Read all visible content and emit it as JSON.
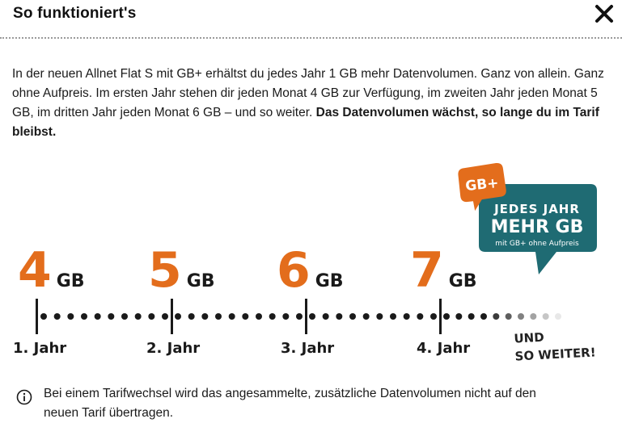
{
  "dialog": {
    "title": "So funktioniert's",
    "close_label": "close"
  },
  "intro": {
    "text": "In der neuen Allnet Flat S mit GB+ erhältst du jedes Jahr 1 GB mehr Datenvolumen. Ganz von allein. Ganz ohne Aufpreis. Im ersten Jahr stehen dir jeden Monat 4 GB zur Verfügung, im zweiten Jahr jeden Monat 5 GB, im dritten Jahr jeden Monat 6 GB – und so weiter. ",
    "bold_text": "Das Datenvolumen wächst, so lange du im Tarif bleibst."
  },
  "badge": {
    "logo": "GB+",
    "line1": "JEDES JAHR",
    "line2": "MEHR GB",
    "line3": "mit GB+ ohne Aufpreis",
    "bubble_color": "#1f6b73",
    "logo_color": "#e36d1c"
  },
  "timeline": {
    "steps": [
      {
        "value": "4",
        "unit": "GB",
        "year": "1. Jahr"
      },
      {
        "value": "5",
        "unit": "GB",
        "year": "2. Jahr"
      },
      {
        "value": "6",
        "unit": "GB",
        "year": "3. Jahr"
      },
      {
        "value": "7",
        "unit": "GB",
        "year": "4. Jahr"
      }
    ],
    "continue_line1": "UND",
    "continue_line2": "SO WEITER!",
    "accent_color": "#e36d1c"
  },
  "info": {
    "icon": "info-icon",
    "text": "Bei einem Tarifwechsel wird das angesammelte, zusätzliche Datenvolumen nicht auf den neuen Tarif übertragen."
  }
}
